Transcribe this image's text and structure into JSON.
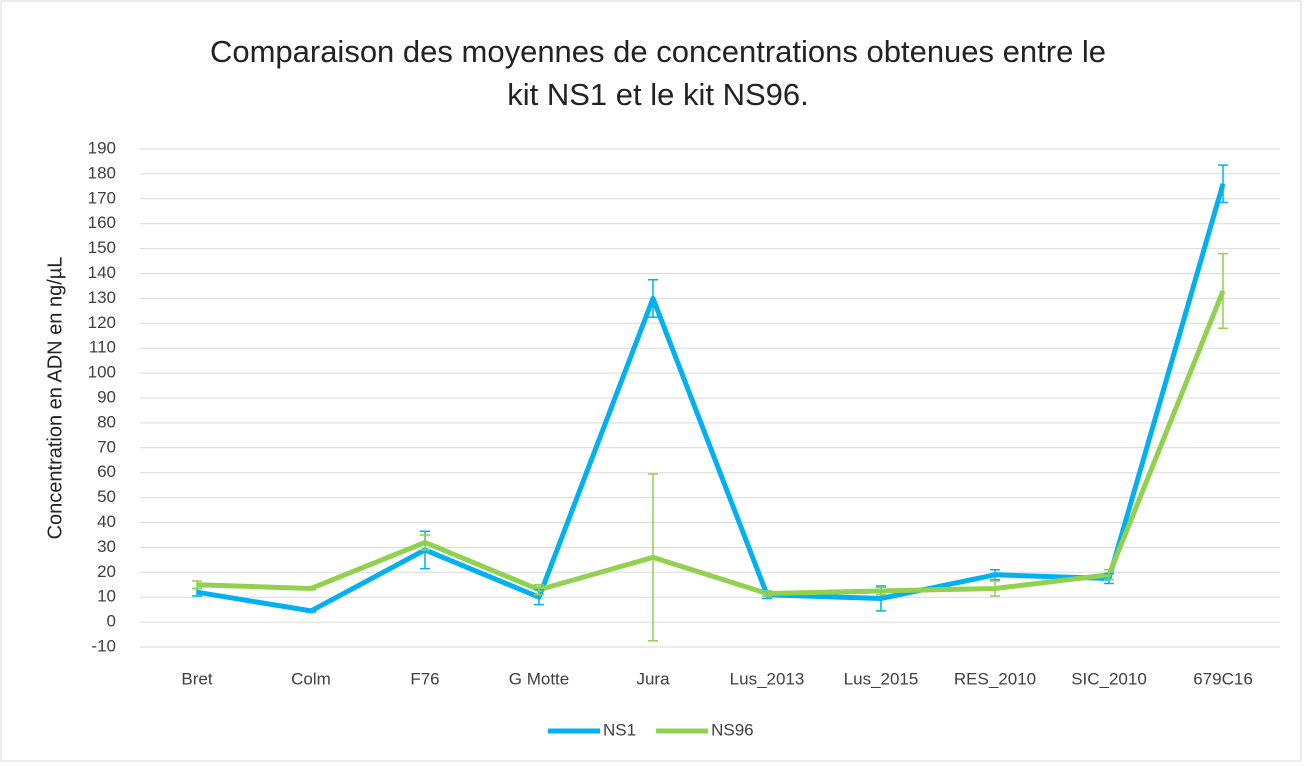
{
  "chart_data": {
    "type": "line",
    "title": [
      "Comparaison des moyennes de concentrations obtenues entre le",
      "kit NS1 et le kit NS96."
    ],
    "y_label": "Concentration en ADN en ng/µL",
    "categories": [
      "Bret",
      "Colm",
      "F76",
      "G Motte",
      "Jura",
      "Lus_2013",
      "Lus_2015",
      "RES_2010",
      "SIC_2010",
      "679C16"
    ],
    "series": [
      {
        "name": "NS1",
        "color": "#00b0f0",
        "values": [
          12,
          4.5,
          29,
          10,
          130,
          11,
          9.5,
          19,
          17.5,
          176
        ],
        "errors": [
          1.5,
          0.5,
          7.5,
          3,
          7.5,
          1.5,
          5,
          2,
          2,
          7.5
        ]
      },
      {
        "name": "NS96",
        "color": "#92d050",
        "values": [
          15,
          13.5,
          32,
          13,
          26,
          11.5,
          12.5,
          13.5,
          19,
          133
        ],
        "errors": [
          1.5,
          0.5,
          3,
          2,
          33.5,
          1,
          1.5,
          3,
          2,
          15
        ]
      }
    ],
    "ylim": [
      -10,
      190
    ],
    "yticks": [
      -10,
      0,
      10,
      20,
      30,
      40,
      50,
      60,
      70,
      80,
      90,
      100,
      110,
      120,
      130,
      140,
      150,
      160,
      170,
      180,
      190
    ],
    "grid": true,
    "legend": "bottom"
  }
}
